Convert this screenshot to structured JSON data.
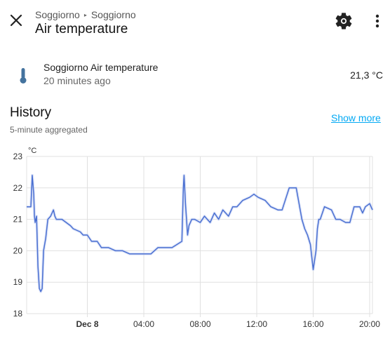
{
  "header": {
    "breadcrumb": [
      "Soggiorno",
      "Soggiorno"
    ],
    "breadcrumb_separator": "▸",
    "title": "Air temperature",
    "close_icon": "close-icon",
    "settings_icon": "gear-icon",
    "menu_icon": "more-vertical-icon"
  },
  "entity": {
    "icon": "thermometer-icon",
    "name": "Soggiorno Air temperature",
    "last_changed": "20 minutes ago",
    "state": "21,3 °C"
  },
  "history": {
    "title": "History",
    "subtitle": "5-minute aggregated",
    "show_more": "Show more"
  },
  "colors": {
    "line": "#4a6fd1",
    "band": "#c9d6f5",
    "grid": "#e0e0e0",
    "link": "#03a9f4",
    "icon": "#44739e"
  },
  "chart_data": {
    "type": "line",
    "unit_label": "°C",
    "ylim": [
      18,
      23
    ],
    "y_ticks": [
      18,
      19,
      20,
      21,
      22,
      23
    ],
    "x_range_hours": [
      -4.3,
      20.2
    ],
    "x_ticks": [
      {
        "hour": 0,
        "label": "Dec 8",
        "bold": true
      },
      {
        "hour": 4,
        "label": "04:00"
      },
      {
        "hour": 8,
        "label": "08:00"
      },
      {
        "hour": 12,
        "label": "12:00"
      },
      {
        "hour": 16,
        "label": "16:00"
      },
      {
        "hour": 20,
        "label": "20:00"
      }
    ],
    "grid": true,
    "series": [
      {
        "values_time_hour": [
          -4.3,
          -4.0,
          -3.9,
          -3.8,
          -3.75,
          -3.7,
          -3.6,
          -3.5,
          -3.4,
          -3.3,
          -3.2,
          -3.1,
          -2.95,
          -2.8,
          -2.6,
          -2.4,
          -2.3,
          -2.2,
          -2.0,
          -1.8,
          -1.2,
          -1.0,
          -0.5,
          -0.3,
          0.0,
          0.3,
          0.7,
          1.0,
          1.5,
          2.0,
          2.5,
          3.0,
          4.0,
          4.5,
          5.0,
          6.0,
          6.7,
          6.8,
          6.85,
          6.95,
          7.1,
          7.2,
          7.4,
          7.6,
          8.0,
          8.3,
          8.7,
          9.0,
          9.3,
          9.6,
          10.0,
          10.3,
          10.6,
          11.0,
          11.5,
          11.8,
          12.1,
          12.6,
          13.0,
          13.5,
          13.8,
          14.3,
          14.8,
          15.2,
          15.4,
          15.6,
          15.8,
          16.0,
          16.2,
          16.3,
          16.4,
          16.5,
          16.8,
          17.3,
          17.6,
          17.9,
          18.3,
          18.6,
          18.9,
          19.3,
          19.5,
          19.7,
          20.0,
          20.2
        ],
        "values": [
          21.4,
          21.4,
          22.4,
          21.8,
          21.1,
          20.9,
          21.1,
          19.5,
          18.8,
          18.7,
          18.8,
          20.0,
          20.4,
          21.0,
          21.1,
          21.3,
          21.1,
          21.0,
          21.0,
          21.0,
          20.8,
          20.7,
          20.6,
          20.5,
          20.5,
          20.3,
          20.3,
          20.1,
          20.1,
          20.0,
          20.0,
          19.9,
          19.9,
          19.9,
          20.1,
          20.1,
          20.3,
          22.0,
          22.4,
          21.5,
          20.5,
          20.8,
          21.0,
          21.0,
          20.9,
          21.1,
          20.9,
          21.2,
          21.0,
          21.3,
          21.1,
          21.4,
          21.4,
          21.6,
          21.7,
          21.8,
          21.7,
          21.6,
          21.4,
          21.3,
          21.3,
          22.0,
          22.0,
          21.0,
          20.7,
          20.5,
          20.2,
          19.4,
          20.0,
          20.7,
          21.0,
          21.0,
          21.4,
          21.3,
          21.0,
          21.0,
          20.9,
          20.9,
          21.4,
          21.4,
          21.2,
          21.4,
          21.5,
          21.3
        ]
      }
    ]
  }
}
